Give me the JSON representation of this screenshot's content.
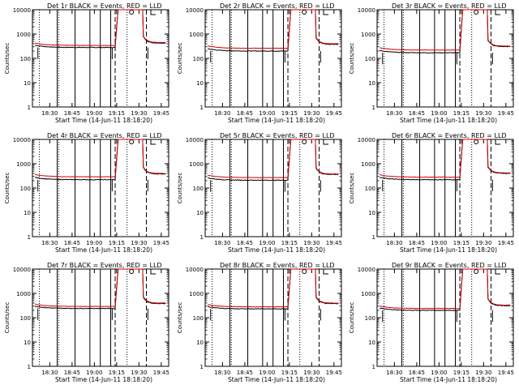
{
  "chart_data": [
    {
      "type": "line",
      "title": "Det 1r BLACK = Events, RED = LLD",
      "xlabel": "Start Time (14-Jun-11 18:18:20)",
      "ylabel": "Counts/sec",
      "yscale": "log",
      "ylim": [
        1,
        10000
      ],
      "yticks": [
        "1",
        "10",
        "100",
        "1000",
        "10000"
      ],
      "xticks": [
        "18:30",
        "18:45",
        "19:00",
        "19:15",
        "19:30",
        "19:45"
      ],
      "events_level": 280,
      "lld_level": 340,
      "peak": 12000,
      "after_level": 450,
      "series": [
        {
          "name": "BLACK = Events",
          "color": "#000000"
        },
        {
          "name": "RED = LLD",
          "color": "#d40000"
        }
      ]
    },
    {
      "type": "line",
      "title": "Det 2r BLACK = Events, RED = LLD",
      "xlabel": "Start Time (14-Jun-11 18:18:20)",
      "ylabel": "Counts/sec",
      "yscale": "log",
      "ylim": [
        1,
        10000
      ],
      "yticks": [
        "1",
        "10",
        "100",
        "1000",
        "10000"
      ],
      "xticks": [
        "18:30",
        "18:45",
        "19:00",
        "19:15",
        "19:30",
        "19:45"
      ],
      "events_level": 200,
      "lld_level": 260,
      "peak": 12000,
      "after_level": 400,
      "series": [
        {
          "name": "BLACK = Events",
          "color": "#000000"
        },
        {
          "name": "RED = LLD",
          "color": "#d40000"
        }
      ]
    },
    {
      "type": "line",
      "title": "Det 3r BLACK = Events, RED = LLD",
      "xlabel": "Start Time (14-Jun-11 18:18:20)",
      "ylabel": "Counts/sec",
      "yscale": "log",
      "ylim": [
        1,
        10000
      ],
      "yticks": [
        "1",
        "10",
        "100",
        "1000",
        "10000"
      ],
      "xticks": [
        "18:30",
        "18:45",
        "19:00",
        "19:15",
        "19:30",
        "19:45"
      ],
      "events_level": 170,
      "lld_level": 220,
      "peak": 12000,
      "after_level": 320,
      "series": [
        {
          "name": "BLACK = Events",
          "color": "#000000"
        },
        {
          "name": "RED = LLD",
          "color": "#d40000"
        }
      ]
    },
    {
      "type": "line",
      "title": "Det 4r BLACK = Events, RED = LLD",
      "xlabel": "Start Time (14-Jun-11 18:18:20)",
      "ylabel": "Counts/sec",
      "yscale": "log",
      "ylim": [
        1,
        10000
      ],
      "yticks": [
        "1",
        "10",
        "100",
        "1000",
        "10000"
      ],
      "xticks": [
        "18:30",
        "18:45",
        "19:00",
        "19:15",
        "19:30",
        "19:45"
      ],
      "events_level": 220,
      "lld_level": 290,
      "peak": 12000,
      "after_level": 400,
      "series": [
        {
          "name": "BLACK = Events",
          "color": "#000000"
        },
        {
          "name": "RED = LLD",
          "color": "#d40000"
        }
      ]
    },
    {
      "type": "line",
      "title": "Det 5r BLACK = Events, RED = LLD",
      "xlabel": "Start Time (14-Jun-11 18:18:20)",
      "ylabel": "Counts/sec",
      "yscale": "log",
      "ylim": [
        1,
        10000
      ],
      "yticks": [
        "1",
        "10",
        "100",
        "1000",
        "10000"
      ],
      "xticks": [
        "18:30",
        "18:45",
        "19:00",
        "19:15",
        "19:30",
        "19:45"
      ],
      "events_level": 210,
      "lld_level": 270,
      "peak": 12000,
      "after_level": 380,
      "series": [
        {
          "name": "BLACK = Events",
          "color": "#000000"
        },
        {
          "name": "RED = LLD",
          "color": "#d40000"
        }
      ]
    },
    {
      "type": "line",
      "title": "Det 6r BLACK = Events, RED = LLD",
      "xlabel": "Start Time (14-Jun-11 18:18:20)",
      "ylabel": "Counts/sec",
      "yscale": "log",
      "ylim": [
        1,
        10000
      ],
      "yticks": [
        "1",
        "10",
        "100",
        "1000",
        "10000"
      ],
      "xticks": [
        "18:30",
        "18:45",
        "19:00",
        "19:15",
        "19:30",
        "19:45"
      ],
      "events_level": 220,
      "lld_level": 280,
      "peak": 12000,
      "after_level": 420,
      "series": [
        {
          "name": "BLACK = Events",
          "color": "#000000"
        },
        {
          "name": "RED = LLD",
          "color": "#d40000"
        }
      ]
    },
    {
      "type": "line",
      "title": "Det 7r BLACK = Events, RED = LLD",
      "xlabel": "Start Time (14-Jun-11 18:18:20)",
      "ylabel": "Counts/sec",
      "yscale": "log",
      "ylim": [
        1,
        10000
      ],
      "yticks": [
        "1",
        "10",
        "100",
        "1000",
        "10000"
      ],
      "xticks": [
        "18:30",
        "18:45",
        "19:00",
        "19:15",
        "19:30",
        "19:45"
      ],
      "events_level": 240,
      "lld_level": 290,
      "peak": 12000,
      "after_level": 400,
      "series": [
        {
          "name": "BLACK = Events",
          "color": "#000000"
        },
        {
          "name": "RED = LLD",
          "color": "#d40000"
        }
      ]
    },
    {
      "type": "line",
      "title": "Det 8r BLACK = Events, RED = LLD",
      "xlabel": "Start Time (14-Jun-11 18:18:20)",
      "ylabel": "Counts/sec",
      "yscale": "log",
      "ylim": [
        1,
        10000
      ],
      "yticks": [
        "1",
        "10",
        "100",
        "1000",
        "10000"
      ],
      "xticks": [
        "18:30",
        "18:45",
        "19:00",
        "19:15",
        "19:30",
        "19:45"
      ],
      "events_level": 230,
      "lld_level": 280,
      "peak": 12000,
      "after_level": 400,
      "series": [
        {
          "name": "BLACK = Events",
          "color": "#000000"
        },
        {
          "name": "RED = LLD",
          "color": "#d40000"
        }
      ]
    },
    {
      "type": "line",
      "title": "Det 9r BLACK = Events, RED = LLD",
      "xlabel": "Start Time (14-Jun-11 18:18:20)",
      "ylabel": "Counts/sec",
      "yscale": "log",
      "ylim": [
        1,
        10000
      ],
      "yticks": [
        "1",
        "10",
        "100",
        "1000",
        "10000"
      ],
      "xticks": [
        "18:30",
        "18:45",
        "19:00",
        "19:15",
        "19:30",
        "19:45"
      ],
      "events_level": 200,
      "lld_level": 240,
      "peak": 12000,
      "after_level": 330,
      "series": [
        {
          "name": "BLACK = Events",
          "color": "#000000"
        },
        {
          "name": "RED = LLD",
          "color": "#d40000"
        }
      ]
    }
  ]
}
